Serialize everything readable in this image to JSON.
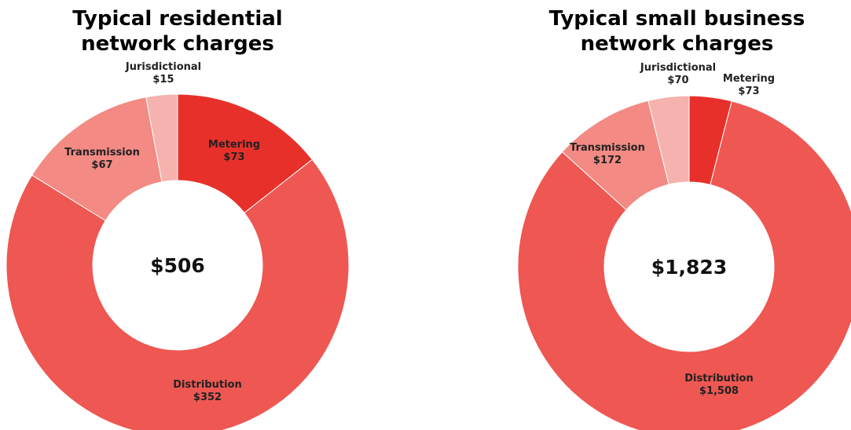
{
  "chart_data": [
    {
      "type": "pie",
      "variant": "donut",
      "title_lines": [
        "Typical residential",
        "network charges"
      ],
      "center_label": "$506",
      "slices": [
        {
          "name": "Metering",
          "value": 73,
          "label": "$73",
          "color": "#e8302a"
        },
        {
          "name": "Distribution",
          "value": 352,
          "label": "$352",
          "color": "#ee5752"
        },
        {
          "name": "Transmission",
          "value": 67,
          "label": "$67",
          "color": "#f38a84"
        },
        {
          "name": "Jurisdictional",
          "value": 15,
          "label": "$15",
          "color": "#f6b2ae"
        }
      ],
      "legend": "none"
    },
    {
      "type": "pie",
      "variant": "donut",
      "title_lines": [
        "Typical small business",
        "network charges"
      ],
      "center_label": "$1,823",
      "slices": [
        {
          "name": "Metering",
          "value": 73,
          "label": "$73",
          "color": "#e8302a"
        },
        {
          "name": "Distribution",
          "value": 1508,
          "label": "$1,508",
          "color": "#ee5752"
        },
        {
          "name": "Transmission",
          "value": 172,
          "label": "$172",
          "color": "#f38a84"
        },
        {
          "name": "Jurisdictional",
          "value": 70,
          "label": "$70",
          "color": "#f6b2ae"
        }
      ],
      "legend": "none"
    }
  ]
}
